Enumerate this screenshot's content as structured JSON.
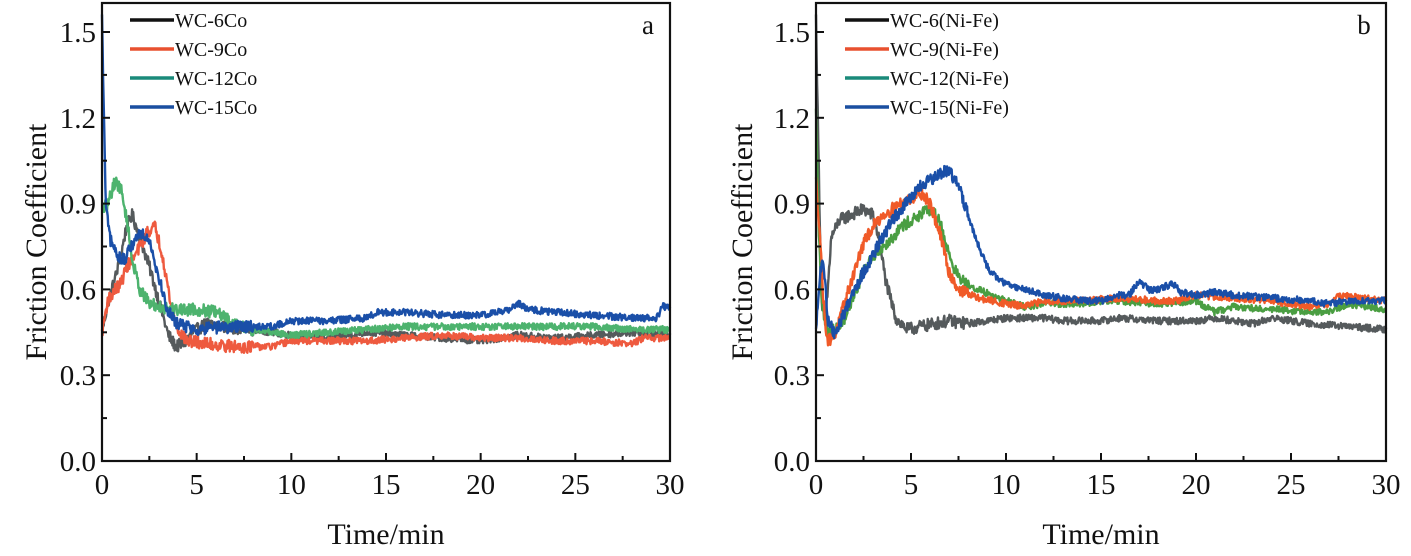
{
  "chart_data": [
    {
      "type": "line",
      "panel_label": "a",
      "xlabel": "Time/min",
      "ylabel": "Friction Coefficient",
      "xlim": [
        0,
        30
      ],
      "ylim": [
        0,
        1.6
      ],
      "x_ticks": [
        0,
        5,
        10,
        15,
        20,
        25,
        30
      ],
      "x_tick_labels": [
        "0",
        "5",
        "10",
        "15",
        "20",
        "25",
        "30"
      ],
      "y_ticks": [
        0.0,
        0.3,
        0.6,
        0.9,
        1.2,
        1.5
      ],
      "y_tick_labels": [
        "0.0",
        "0.3",
        "0.6",
        "0.9",
        "1.2",
        "1.5"
      ],
      "grid": false,
      "legend_position": "top-left",
      "series": [
        {
          "name": "WC-6Co",
          "legend_color": "#111111",
          "color": "#555a5c",
          "points": [
            [
              0,
              0.45
            ],
            [
              0.3,
              0.55
            ],
            [
              0.7,
              0.64
            ],
            [
              1.0,
              0.72
            ],
            [
              1.3,
              0.82
            ],
            [
              1.6,
              0.86
            ],
            [
              2.0,
              0.78
            ],
            [
              2.5,
              0.68
            ],
            [
              3.0,
              0.56
            ],
            [
              3.5,
              0.44
            ],
            [
              3.9,
              0.4
            ],
            [
              4.3,
              0.41
            ],
            [
              4.8,
              0.45
            ],
            [
              5.5,
              0.48
            ],
            [
              6.5,
              0.47
            ],
            [
              8,
              0.46
            ],
            [
              10,
              0.44
            ],
            [
              12,
              0.43
            ],
            [
              14,
              0.45
            ],
            [
              16,
              0.44
            ],
            [
              18,
              0.43
            ],
            [
              20,
              0.42
            ],
            [
              22,
              0.44
            ],
            [
              24,
              0.43
            ],
            [
              26,
              0.44
            ],
            [
              28,
              0.45
            ],
            [
              30,
              0.44
            ]
          ]
        },
        {
          "name": "WC-9Co",
          "legend_color": "#e8502f",
          "color": "#ee5a3f",
          "points": [
            [
              0,
              0.45
            ],
            [
              0.3,
              0.56
            ],
            [
              0.7,
              0.6
            ],
            [
              1.0,
              0.62
            ],
            [
              1.3,
              0.68
            ],
            [
              1.6,
              0.7
            ],
            [
              2.0,
              0.75
            ],
            [
              2.4,
              0.8
            ],
            [
              2.8,
              0.82
            ],
            [
              3.2,
              0.72
            ],
            [
              3.6,
              0.56
            ],
            [
              4.0,
              0.46
            ],
            [
              4.5,
              0.42
            ],
            [
              5.5,
              0.41
            ],
            [
              7,
              0.4
            ],
            [
              9,
              0.4
            ],
            [
              10,
              0.42
            ],
            [
              12,
              0.42
            ],
            [
              14,
              0.42
            ],
            [
              16,
              0.43
            ],
            [
              18,
              0.44
            ],
            [
              20,
              0.43
            ],
            [
              22,
              0.43
            ],
            [
              24,
              0.42
            ],
            [
              26,
              0.42
            ],
            [
              28,
              0.41
            ],
            [
              28.6,
              0.43
            ],
            [
              30,
              0.43
            ]
          ]
        },
        {
          "name": "WC-12Co",
          "legend_color": "#1a8a7a",
          "color": "#4db36e",
          "points": [
            [
              0,
              0.88
            ],
            [
              0.3,
              0.9
            ],
            [
              0.7,
              0.98
            ],
            [
              1.0,
              0.95
            ],
            [
              1.3,
              0.85
            ],
            [
              1.6,
              0.7
            ],
            [
              2.0,
              0.6
            ],
            [
              2.5,
              0.55
            ],
            [
              3.0,
              0.54
            ],
            [
              4.0,
              0.53
            ],
            [
              5.0,
              0.53
            ],
            [
              6.0,
              0.52
            ],
            [
              7.0,
              0.48
            ],
            [
              8.0,
              0.46
            ],
            [
              10,
              0.44
            ],
            [
              12,
              0.45
            ],
            [
              14,
              0.46
            ],
            [
              16,
              0.47
            ],
            [
              18,
              0.47
            ],
            [
              20,
              0.47
            ],
            [
              22,
              0.47
            ],
            [
              24,
              0.47
            ],
            [
              26,
              0.47
            ],
            [
              28,
              0.46
            ],
            [
              30,
              0.46
            ]
          ]
        },
        {
          "name": "WC-15Co",
          "legend_color": "#1a4fa0",
          "color": "#1a4fa8",
          "points": [
            [
              0,
              1.55
            ],
            [
              0.1,
              1.2
            ],
            [
              0.2,
              0.9
            ],
            [
              0.4,
              0.78
            ],
            [
              0.8,
              0.72
            ],
            [
              1.2,
              0.7
            ],
            [
              1.6,
              0.76
            ],
            [
              2.0,
              0.8
            ],
            [
              2.5,
              0.78
            ],
            [
              3.0,
              0.64
            ],
            [
              3.5,
              0.52
            ],
            [
              4.0,
              0.48
            ],
            [
              5,
              0.46
            ],
            [
              7,
              0.47
            ],
            [
              9,
              0.47
            ],
            [
              10,
              0.49
            ],
            [
              12,
              0.49
            ],
            [
              14,
              0.5
            ],
            [
              14.5,
              0.52
            ],
            [
              16,
              0.52
            ],
            [
              18,
              0.51
            ],
            [
              20,
              0.51
            ],
            [
              21.5,
              0.53
            ],
            [
              22,
              0.55
            ],
            [
              22.5,
              0.53
            ],
            [
              24,
              0.52
            ],
            [
              26,
              0.51
            ],
            [
              28,
              0.5
            ],
            [
              29.3,
              0.5
            ],
            [
              29.6,
              0.54
            ],
            [
              30,
              0.54
            ]
          ]
        }
      ]
    },
    {
      "type": "line",
      "panel_label": "b",
      "xlabel": "Time/min",
      "ylabel": "Friction Coefficient",
      "xlim": [
        0,
        30
      ],
      "ylim": [
        0,
        1.6
      ],
      "x_ticks": [
        0,
        5,
        10,
        15,
        20,
        25,
        30
      ],
      "x_tick_labels": [
        "0",
        "5",
        "10",
        "15",
        "20",
        "25",
        "30"
      ],
      "y_ticks": [
        0.0,
        0.3,
        0.6,
        0.9,
        1.2,
        1.5
      ],
      "y_tick_labels": [
        "0.0",
        "0.3",
        "0.6",
        "0.9",
        "1.2",
        "1.5"
      ],
      "grid": false,
      "legend_position": "top-left",
      "series": [
        {
          "name": "WC-6(Ni-Fe)",
          "legend_color": "#111111",
          "color": "#555a5c",
          "points": [
            [
              0,
              1.55
            ],
            [
              0.15,
              1.0
            ],
            [
              0.3,
              0.55
            ],
            [
              0.5,
              0.48
            ],
            [
              0.8,
              0.78
            ],
            [
              1.2,
              0.84
            ],
            [
              1.8,
              0.86
            ],
            [
              2.5,
              0.88
            ],
            [
              3.0,
              0.86
            ],
            [
              3.3,
              0.78
            ],
            [
              3.7,
              0.62
            ],
            [
              4.2,
              0.5
            ],
            [
              4.8,
              0.46
            ],
            [
              5.5,
              0.47
            ],
            [
              7,
              0.49
            ],
            [
              8,
              0.48
            ],
            [
              9,
              0.49
            ],
            [
              10,
              0.5
            ],
            [
              11,
              0.5
            ],
            [
              12,
              0.5
            ],
            [
              13,
              0.49
            ],
            [
              15,
              0.49
            ],
            [
              16,
              0.5
            ],
            [
              18,
              0.49
            ],
            [
              20,
              0.49
            ],
            [
              21,
              0.5
            ],
            [
              23,
              0.48
            ],
            [
              24,
              0.5
            ],
            [
              25,
              0.49
            ],
            [
              26,
              0.48
            ],
            [
              28,
              0.47
            ],
            [
              30,
              0.46
            ]
          ]
        },
        {
          "name": "WC-9(Ni-Fe)",
          "legend_color": "#e8502f",
          "color": "#f05a28",
          "points": [
            [
              0,
              0.98
            ],
            [
              0.2,
              0.8
            ],
            [
              0.4,
              0.55
            ],
            [
              0.6,
              0.42
            ],
            [
              1.0,
              0.44
            ],
            [
              1.5,
              0.55
            ],
            [
              2.0,
              0.66
            ],
            [
              2.5,
              0.76
            ],
            [
              3.0,
              0.82
            ],
            [
              3.5,
              0.86
            ],
            [
              4.0,
              0.88
            ],
            [
              4.5,
              0.9
            ],
            [
              5.0,
              0.92
            ],
            [
              5.5,
              0.94
            ],
            [
              6.0,
              0.9
            ],
            [
              6.5,
              0.8
            ],
            [
              7.0,
              0.66
            ],
            [
              7.5,
              0.6
            ],
            [
              8.5,
              0.57
            ],
            [
              10,
              0.55
            ],
            [
              11,
              0.54
            ],
            [
              12,
              0.56
            ],
            [
              14,
              0.56
            ],
            [
              16,
              0.57
            ],
            [
              18,
              0.56
            ],
            [
              19,
              0.56
            ],
            [
              20,
              0.58
            ],
            [
              22,
              0.57
            ],
            [
              24,
              0.56
            ],
            [
              26,
              0.54
            ],
            [
              27,
              0.55
            ],
            [
              27.5,
              0.58
            ],
            [
              30,
              0.56
            ]
          ]
        },
        {
          "name": "WC-12(Ni-Fe)",
          "legend_color": "#1a8a7a",
          "color": "#4a9e42",
          "points": [
            [
              0,
              1.22
            ],
            [
              0.15,
              0.8
            ],
            [
              0.3,
              0.55
            ],
            [
              0.6,
              0.46
            ],
            [
              1.0,
              0.46
            ],
            [
              1.5,
              0.5
            ],
            [
              2.0,
              0.58
            ],
            [
              2.5,
              0.66
            ],
            [
              3.0,
              0.72
            ],
            [
              3.5,
              0.75
            ],
            [
              4.0,
              0.78
            ],
            [
              4.5,
              0.82
            ],
            [
              5.0,
              0.84
            ],
            [
              5.5,
              0.86
            ],
            [
              6.0,
              0.88
            ],
            [
              6.5,
              0.84
            ],
            [
              7.0,
              0.72
            ],
            [
              7.5,
              0.64
            ],
            [
              8.5,
              0.6
            ],
            [
              10,
              0.56
            ],
            [
              11,
              0.54
            ],
            [
              12,
              0.55
            ],
            [
              14,
              0.55
            ],
            [
              15,
              0.56
            ],
            [
              16,
              0.56
            ],
            [
              18,
              0.55
            ],
            [
              20,
              0.56
            ],
            [
              21,
              0.52
            ],
            [
              22,
              0.54
            ],
            [
              24,
              0.53
            ],
            [
              26,
              0.52
            ],
            [
              27,
              0.52
            ],
            [
              28,
              0.55
            ],
            [
              30,
              0.53
            ]
          ]
        },
        {
          "name": "WC-15(Ni-Fe)",
          "legend_color": "#1a4fa0",
          "color": "#1a4fa8",
          "points": [
            [
              0,
              0.45
            ],
            [
              0.2,
              0.65
            ],
            [
              0.4,
              0.7
            ],
            [
              0.6,
              0.5
            ],
            [
              1.0,
              0.44
            ],
            [
              1.5,
              0.52
            ],
            [
              2.0,
              0.6
            ],
            [
              2.5,
              0.66
            ],
            [
              3.0,
              0.72
            ],
            [
              3.5,
              0.78
            ],
            [
              4.0,
              0.84
            ],
            [
              4.5,
              0.88
            ],
            [
              5.0,
              0.92
            ],
            [
              5.5,
              0.96
            ],
            [
              6.0,
              0.98
            ],
            [
              6.5,
              1.0
            ],
            [
              7.0,
              1.02
            ],
            [
              7.5,
              0.96
            ],
            [
              8.0,
              0.86
            ],
            [
              8.5,
              0.76
            ],
            [
              9.0,
              0.68
            ],
            [
              9.5,
              0.64
            ],
            [
              10,
              0.62
            ],
            [
              11,
              0.6
            ],
            [
              12,
              0.58
            ],
            [
              13,
              0.57
            ],
            [
              14,
              0.56
            ],
            [
              15,
              0.56
            ],
            [
              16,
              0.58
            ],
            [
              16.5,
              0.58
            ],
            [
              17,
              0.63
            ],
            [
              17.5,
              0.6
            ],
            [
              18,
              0.6
            ],
            [
              18.8,
              0.62
            ],
            [
              19.2,
              0.59
            ],
            [
              20,
              0.58
            ],
            [
              21,
              0.59
            ],
            [
              22,
              0.58
            ],
            [
              24,
              0.57
            ],
            [
              26,
              0.56
            ],
            [
              27,
              0.55
            ],
            [
              28,
              0.56
            ],
            [
              30,
              0.56
            ]
          ]
        }
      ]
    }
  ]
}
